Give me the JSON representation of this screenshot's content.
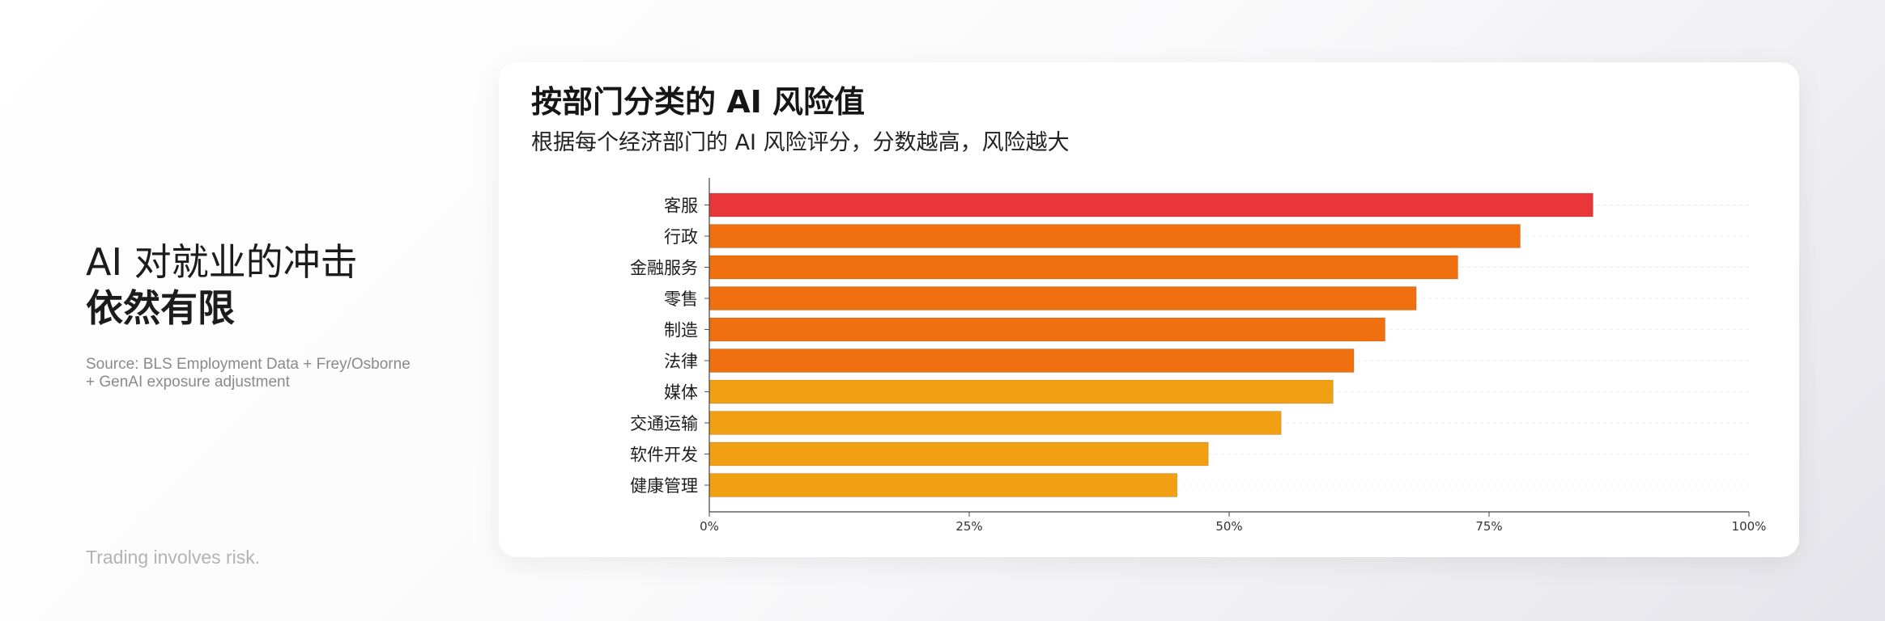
{
  "left": {
    "headline_line1": "AI 对就业的冲击",
    "headline_line2": "依然有限",
    "source_line1": "Source: BLS Employment Data + Frey/Osborne",
    "source_line2": "+ GenAI exposure adjustment",
    "disclaimer": "Trading involves risk."
  },
  "card": {
    "title": "按部门分类的 AI 风险值",
    "subtitle": "根据每个经济部门的 AI 风险评分，分数越高，风险越大"
  },
  "colors": {
    "high": "#e8363b",
    "mid": "#f0700f",
    "low": "#f0a012"
  },
  "chart_data": {
    "type": "bar",
    "orientation": "horizontal",
    "categories": [
      "客服",
      "行政",
      "金融服务",
      "零售",
      "制造",
      "法律",
      "媒体",
      "交通运输",
      "软件开发",
      "健康管理"
    ],
    "values": [
      85,
      78,
      72,
      68,
      65,
      62,
      60,
      55,
      48,
      45
    ],
    "color_levels": [
      "high",
      "mid",
      "mid",
      "mid",
      "mid",
      "mid",
      "low",
      "low",
      "low",
      "low"
    ],
    "xlim": [
      0,
      100
    ],
    "xticks": [
      0,
      25,
      50,
      75,
      100
    ],
    "xtick_labels": [
      "0%",
      "25%",
      "50%",
      "75%",
      "100%"
    ],
    "title": "按部门分类的 AI 风险值",
    "subtitle": "根据每个经济部门的 AI 风险评分，分数越高，风险越大",
    "grid": true,
    "legend": "none"
  }
}
